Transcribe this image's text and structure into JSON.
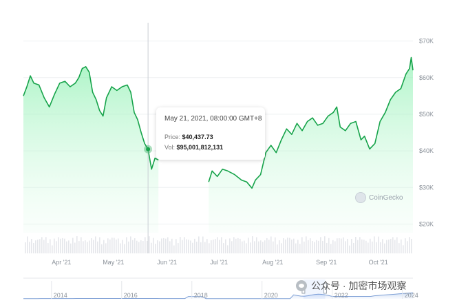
{
  "chart_data": {
    "type": "area",
    "y_tick_labels": [
      "$70K",
      "$60K",
      "$50K",
      "$40K",
      "$30K",
      "$20K"
    ],
    "y_ticks": [
      70000,
      60000,
      50000,
      40000,
      30000,
      20000
    ],
    "ylim": [
      15000,
      75000
    ],
    "x_tick_labels": [
      "Apr '21",
      "May '21",
      "Jun '21",
      "Jul '21",
      "Aug '21",
      "Sep '21",
      "Oct '21"
    ],
    "x_ticks": [
      "2021-04-01",
      "2021-05-01",
      "2021-06-01",
      "2021-07-01",
      "2021-08-01",
      "2021-09-01",
      "2021-10-01"
    ],
    "x_range": [
      "2021-03-10",
      "2021-10-21"
    ],
    "grid": true,
    "line_color": "#16a34a",
    "price_series": {
      "x": [
        "2021-03-10",
        "2021-03-12",
        "2021-03-14",
        "2021-03-16",
        "2021-03-19",
        "2021-03-22",
        "2021-03-25",
        "2021-03-28",
        "2021-03-31",
        "2021-04-03",
        "2021-04-06",
        "2021-04-09",
        "2021-04-11",
        "2021-04-13",
        "2021-04-15",
        "2021-04-17",
        "2021-04-19",
        "2021-04-21",
        "2021-04-23",
        "2021-04-25",
        "2021-04-27",
        "2021-04-30",
        "2021-05-03",
        "2021-05-06",
        "2021-05-09",
        "2021-05-11",
        "2021-05-13",
        "2021-05-15",
        "2021-05-17",
        "2021-05-19",
        "2021-05-21",
        "2021-05-23",
        "2021-05-25",
        "2021-05-27"
      ],
      "y": [
        55000,
        57500,
        60500,
        58500,
        58000,
        54500,
        52000,
        55500,
        58500,
        59000,
        57500,
        58500,
        60000,
        62500,
        63000,
        61500,
        56000,
        54000,
        51000,
        49500,
        54500,
        57500,
        56500,
        57500,
        58000,
        56000,
        50500,
        48500,
        45000,
        42000,
        40437.73,
        35000,
        38000,
        37500
      ]
    },
    "price_series_2": {
      "x": [
        "2021-06-25",
        "2021-06-27",
        "2021-06-30",
        "2021-07-03",
        "2021-07-06",
        "2021-07-10",
        "2021-07-14",
        "2021-07-17",
        "2021-07-20",
        "2021-07-22",
        "2021-07-25",
        "2021-07-28",
        "2021-07-31",
        "2021-08-03",
        "2021-08-06",
        "2021-08-09",
        "2021-08-12",
        "2021-08-15",
        "2021-08-18",
        "2021-08-21",
        "2021-08-24",
        "2021-08-27",
        "2021-08-30",
        "2021-09-02",
        "2021-09-05",
        "2021-09-07",
        "2021-09-09",
        "2021-09-12",
        "2021-09-15",
        "2021-09-18",
        "2021-09-21",
        "2021-09-23",
        "2021-09-26",
        "2021-09-29",
        "2021-10-02",
        "2021-10-05",
        "2021-10-08",
        "2021-10-11",
        "2021-10-14",
        "2021-10-17",
        "2021-10-19",
        "2021-10-20",
        "2021-10-21"
      ],
      "y": [
        31500,
        34500,
        33000,
        35000,
        34500,
        33500,
        32000,
        31500,
        29800,
        32000,
        33500,
        39500,
        41500,
        39500,
        43000,
        46000,
        44500,
        47500,
        45500,
        48000,
        49000,
        47000,
        47500,
        49500,
        50500,
        52000,
        46500,
        45500,
        47500,
        48000,
        43000,
        44000,
        40500,
        42000,
        48000,
        50500,
        54000,
        56000,
        57000,
        61000,
        62500,
        65500,
        62000
      ]
    },
    "tooltip": {
      "date": "May 21, 2021, 08:00:00 GMT+8",
      "price_label": "Price:",
      "price_value": "$40,437.73",
      "price": 40437.73,
      "vol_label": "Vol:",
      "vol_value": "$95,001,812,131"
    },
    "navigator": {
      "x_tick_labels": [
        "2014",
        "2016",
        "2018",
        "2020",
        "2022",
        "2024"
      ],
      "x_ticks": [
        2014,
        2016,
        2018,
        2020,
        2022,
        2024
      ]
    }
  },
  "watermark": {
    "text": "CoinGecko",
    "icon": "coingecko-logo-icon"
  },
  "social_watermark": {
    "text": "公众号 · 加密市场观察",
    "icon": "wechat-icon"
  }
}
